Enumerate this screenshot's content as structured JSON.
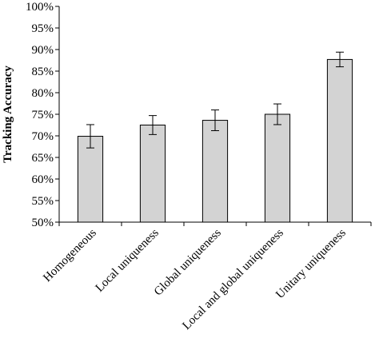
{
  "chart_data": {
    "type": "bar",
    "title": "",
    "xlabel": "",
    "ylabel": "Tracking Accuracy",
    "ylim": [
      50,
      100
    ],
    "y_tick_step": 5,
    "y_tick_format": "percent",
    "categories": [
      "Homogeneous",
      "Local uniqueness",
      "Global uniqueness",
      "Local and global uniqueness",
      "Unitary uniqueness"
    ],
    "values": [
      69.9,
      72.5,
      73.6,
      75.0,
      87.7
    ],
    "errors": [
      2.7,
      2.2,
      2.4,
      2.4,
      1.7
    ],
    "bar_color": "#d3d3d3",
    "grid": false,
    "legend": "none"
  }
}
